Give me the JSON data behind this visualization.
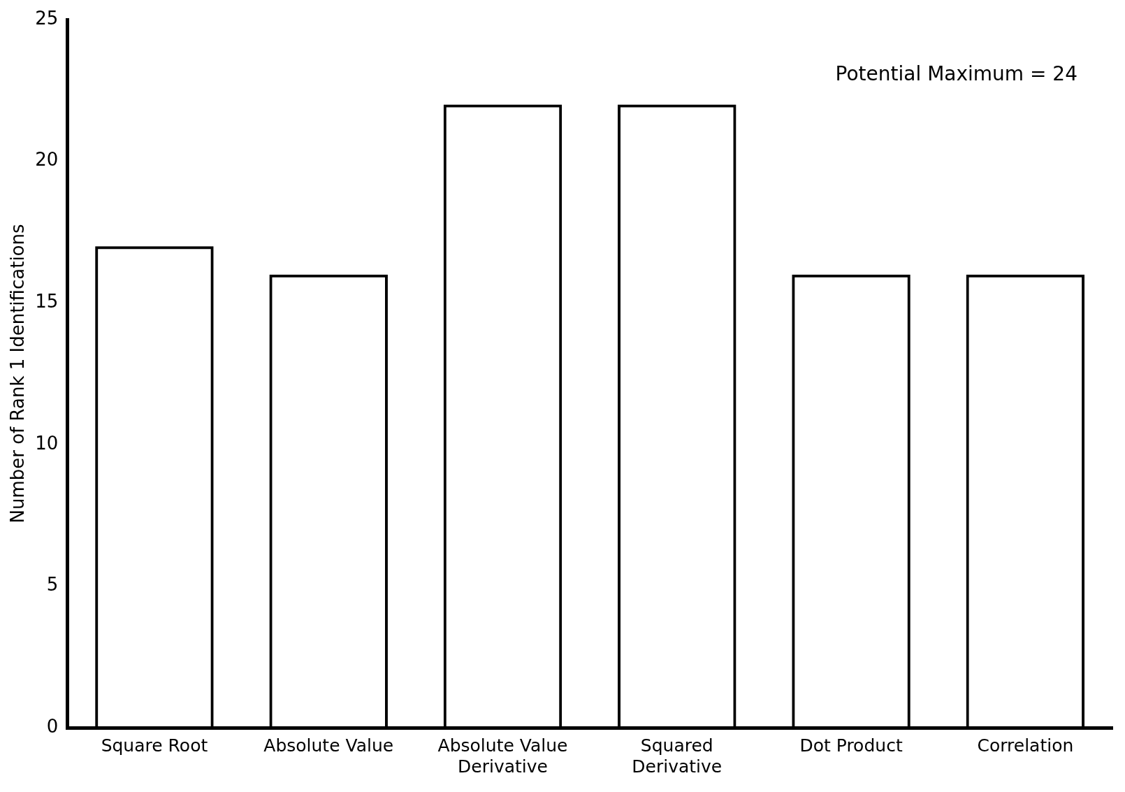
{
  "chart_data": {
    "type": "bar",
    "ylabel": "Number of Rank 1 Identifications",
    "categories": [
      "Square Root",
      "Absolute Value",
      "Absolute Value Derivative",
      "Squared Derivative",
      "Dot Product",
      "Correlation"
    ],
    "values": [
      17,
      16,
      22,
      22,
      16,
      16
    ],
    "color": "#000000",
    "ylim": [
      0,
      25
    ],
    "yticks": [
      0,
      5,
      10,
      15,
      20,
      25
    ],
    "grid": false,
    "annotations": [
      "Potential Maximum = 24"
    ]
  }
}
